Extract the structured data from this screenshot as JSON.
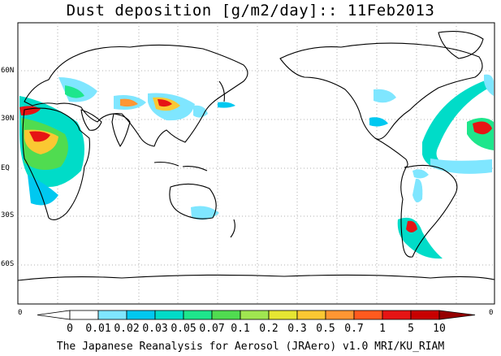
{
  "title": "Dust deposition [g/m2/day]:: 11Feb2013",
  "credit": "The Japanese Reanalysis for Aerosol (JRAero) v1.0 MRI/KU_RIAM",
  "lat_labels": [
    "60N",
    "30N",
    "EQ",
    "30S",
    "60S"
  ],
  "edge_zero_left": "0",
  "edge_zero_right": "0",
  "colorbar": {
    "labels": [
      "0",
      "0.01",
      "0.02",
      "0.03",
      "0.05",
      "0.07",
      "0.1",
      "0.2",
      "0.3",
      "0.5",
      "0.7",
      "1",
      "5",
      "10"
    ],
    "colors": [
      "#ffffff",
      "#ffffff",
      "#7fe6ff",
      "#00c8f0",
      "#00dcc8",
      "#1ee68c",
      "#50dc50",
      "#a0e650",
      "#e6e632",
      "#fac832",
      "#ff9632",
      "#ff5a1e",
      "#e61414",
      "#c80000",
      "#960000"
    ]
  }
}
